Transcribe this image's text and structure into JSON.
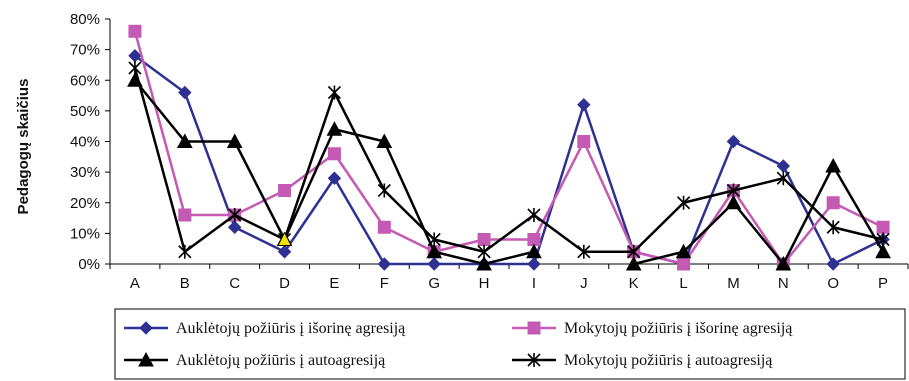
{
  "chart_data": {
    "type": "line",
    "title": "",
    "xlabel": "",
    "ylabel": "Pedagogų skaičius",
    "ylim": [
      0,
      80
    ],
    "y_ticks": [
      "80%",
      "70%",
      "60%",
      "50%",
      "40%",
      "30%",
      "20%",
      "10%",
      "0%"
    ],
    "y_tick_values": [
      80,
      70,
      60,
      50,
      40,
      30,
      20,
      10,
      0
    ],
    "grid": false,
    "legend_position": "bottom",
    "categories": [
      "A",
      "B",
      "C",
      "D",
      "E",
      "F",
      "G",
      "H",
      "I",
      "J",
      "K",
      "L",
      "M",
      "N",
      "O",
      "P"
    ],
    "series": [
      {
        "name": "Auklėtojų požiūris į išorinę agresiją",
        "color": "#2e3192",
        "marker": "diamond",
        "values": [
          68,
          56,
          12,
          4,
          28,
          0,
          0,
          0,
          0,
          52,
          4,
          0,
          40,
          32,
          0,
          8
        ]
      },
      {
        "name": "Mokytojų požiūris į išorinę agresiją",
        "color": "#c45ab4",
        "marker": "square",
        "values": [
          76,
          16,
          16,
          24,
          36,
          12,
          4,
          8,
          8,
          40,
          4,
          0,
          24,
          0,
          20,
          12
        ]
      },
      {
        "name": "Auklėtojų požiūris į autoagresiją",
        "color": "#000000",
        "marker": "triangle",
        "values": [
          60,
          40,
          40,
          8,
          44,
          40,
          4,
          0,
          4,
          null,
          0,
          4,
          20,
          0,
          32,
          4
        ]
      },
      {
        "name": "Mokytojų požiūris į autoagresiją",
        "color": "#000000",
        "marker": "asterisk",
        "values": [
          64,
          4,
          16,
          8,
          56,
          24,
          8,
          4,
          16,
          4,
          4,
          20,
          24,
          28,
          12,
          8
        ]
      }
    ],
    "highlight": {
      "category": "D",
      "color": "#f2e000"
    }
  }
}
